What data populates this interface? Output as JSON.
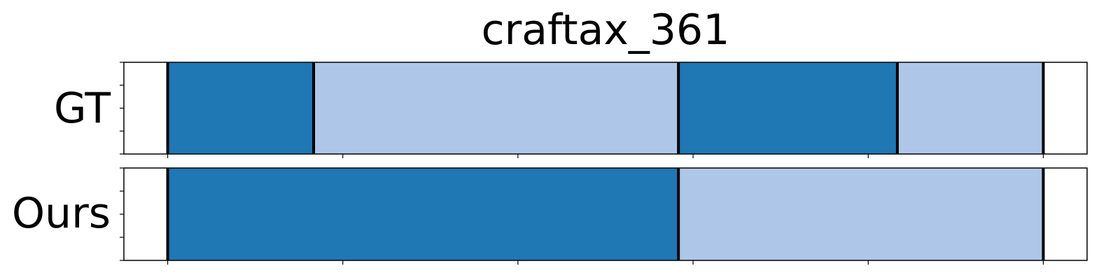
{
  "chart_data": {
    "type": "bar",
    "title": "craftax_361",
    "xlim": [
      0,
      1
    ],
    "colors": {
      "dark": "#1f77b4",
      "light": "#aec7e8",
      "boundary": "#000000"
    },
    "rows": [
      {
        "label": "GT",
        "segments": [
          {
            "start": 0.05,
            "end": 0.2167,
            "color": "dark"
          },
          {
            "start": 0.2167,
            "end": 0.6333,
            "color": "light"
          },
          {
            "start": 0.6333,
            "end": 0.8833,
            "color": "dark"
          },
          {
            "start": 0.8833,
            "end": 1.05,
            "color": "light"
          }
        ],
        "boundaries": [
          0.05,
          0.2167,
          0.6333,
          0.8833,
          1.05
        ]
      },
      {
        "label": "Ours",
        "segments": [
          {
            "start": 0.05,
            "end": 0.6333,
            "color": "dark"
          },
          {
            "start": 0.6333,
            "end": 1.05,
            "color": "light"
          }
        ],
        "boundaries": [
          0.05,
          0.6333,
          1.05
        ]
      }
    ],
    "x_ticks": [
      0.05,
      0.25,
      0.45,
      0.65,
      0.85,
      1.05
    ],
    "y_tick_count": 5
  }
}
